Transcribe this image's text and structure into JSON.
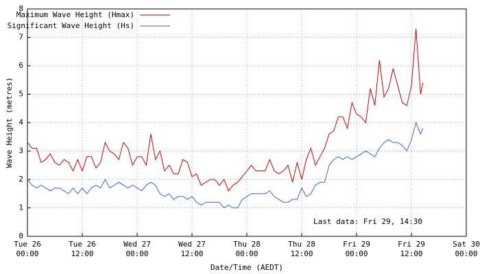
{
  "chart_data": {
    "type": "line",
    "x_label": "Date/Time (AEDT)",
    "y_label": "Wave Height (metres)",
    "annotation": "Last data: Fri 29, 14:30",
    "x": [
      0,
      1,
      2,
      3,
      4,
      5,
      6,
      7,
      8,
      9,
      10,
      11,
      12,
      13,
      14,
      15,
      16,
      17,
      18,
      19,
      20,
      21,
      22,
      23,
      24,
      25,
      26,
      27,
      28,
      29,
      30,
      31,
      32,
      33,
      34,
      35,
      36,
      37,
      38,
      39,
      40,
      41,
      42,
      43,
      44,
      45,
      46,
      47,
      48,
      49,
      50,
      51,
      52,
      53,
      54,
      55,
      56,
      57,
      58,
      59,
      60,
      61,
      62,
      63,
      64,
      65,
      66,
      67,
      68,
      69,
      70,
      71,
      72,
      73,
      74,
      75,
      76,
      77,
      78,
      79,
      80,
      81,
      82,
      83,
      84,
      85,
      86,
      86.5
    ],
    "series": [
      {
        "name": "Maximum Wave Height (Hmax)",
        "color": "#cc0000",
        "values": [
          3.3,
          3.1,
          3.1,
          2.6,
          2.7,
          2.9,
          2.6,
          2.5,
          2.7,
          2.6,
          2.3,
          2.7,
          2.3,
          2.8,
          2.8,
          2.4,
          2.6,
          3.3,
          3.0,
          2.9,
          2.7,
          3.3,
          3.1,
          2.5,
          2.8,
          2.8,
          2.5,
          3.6,
          2.7,
          3.0,
          2.3,
          2.5,
          2.2,
          2.2,
          2.7,
          2.6,
          2.1,
          2.2,
          1.8,
          1.9,
          2.0,
          2.0,
          1.8,
          2.0,
          1.6,
          1.8,
          1.9,
          2.1,
          2.3,
          2.5,
          2.3,
          2.3,
          2.3,
          2.7,
          2.3,
          2.2,
          2.3,
          2.5,
          1.9,
          2.6,
          2.0,
          2.7,
          3.1,
          2.5,
          2.8,
          3.1,
          3.6,
          3.7,
          4.2,
          4.2,
          3.8,
          4.7,
          4.3,
          4.2,
          4.0,
          5.2,
          4.6,
          6.2,
          4.9,
          5.2,
          5.9,
          5.3,
          4.7,
          4.6,
          5.3,
          7.3,
          5.0,
          5.4
        ]
      },
      {
        "name": "Significant Wave Height (Hs)",
        "color": "#3366cc",
        "values": [
          2.0,
          1.8,
          1.7,
          1.8,
          1.7,
          1.6,
          1.7,
          1.7,
          1.6,
          1.5,
          1.7,
          1.5,
          1.7,
          1.5,
          1.7,
          1.8,
          1.7,
          2.0,
          1.7,
          1.8,
          1.9,
          1.8,
          1.7,
          1.8,
          1.7,
          1.6,
          1.8,
          1.9,
          1.8,
          1.5,
          1.4,
          1.5,
          1.3,
          1.4,
          1.4,
          1.3,
          1.4,
          1.2,
          1.1,
          1.2,
          1.2,
          1.2,
          1.2,
          1.0,
          1.1,
          1.0,
          1.0,
          1.3,
          1.4,
          1.5,
          1.5,
          1.5,
          1.5,
          1.6,
          1.4,
          1.3,
          1.2,
          1.2,
          1.3,
          1.3,
          1.7,
          1.4,
          1.5,
          1.8,
          1.9,
          1.9,
          2.5,
          2.7,
          2.8,
          2.7,
          2.8,
          2.7,
          2.8,
          2.9,
          3.0,
          2.9,
          2.8,
          3.1,
          3.3,
          3.4,
          3.3,
          3.3,
          3.2,
          3.0,
          3.4,
          4.0,
          3.6,
          3.8
        ]
      }
    ],
    "xlim": [
      0,
      96
    ],
    "xticks": [
      {
        "value": 0,
        "label": [
          "Tue 26",
          "00:00"
        ]
      },
      {
        "value": 12,
        "label": [
          "Tue 26",
          "12:00"
        ]
      },
      {
        "value": 24,
        "label": [
          "Wed 27",
          "00:00"
        ]
      },
      {
        "value": 36,
        "label": [
          "Wed 27",
          "12:00"
        ]
      },
      {
        "value": 48,
        "label": [
          "Thu 28",
          "00:00"
        ]
      },
      {
        "value": 60,
        "label": [
          "Thu 28",
          "12:00"
        ]
      },
      {
        "value": 72,
        "label": [
          "Fri 29",
          "00:00"
        ]
      },
      {
        "value": 84,
        "label": [
          "Fri 29",
          "12:00"
        ]
      },
      {
        "value": 96,
        "label": [
          "Sat 30",
          "00:00"
        ]
      }
    ],
    "ylim": [
      0,
      8
    ],
    "yticks": [
      0,
      1,
      2,
      3,
      4,
      5,
      6,
      7,
      8
    ],
    "grid": true,
    "legend": "top-left"
  }
}
